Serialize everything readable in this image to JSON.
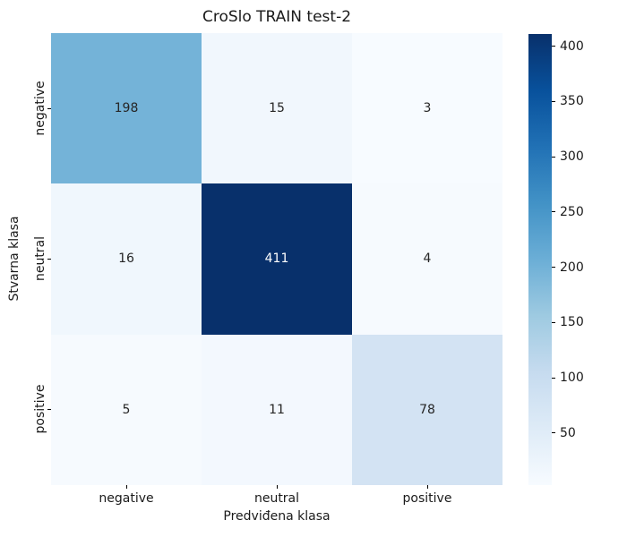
{
  "title": "CroSlo TRAIN test-2",
  "chart_data": {
    "type": "heatmap",
    "title": "CroSlo TRAIN test-2",
    "xlabel": "Predviđena klasa",
    "ylabel": "Stvarna klasa",
    "x_categories": [
      "negative",
      "neutral",
      "positive"
    ],
    "y_categories": [
      "negative",
      "neutral",
      "positive"
    ],
    "matrix": [
      [
        198,
        15,
        3
      ],
      [
        16,
        411,
        4
      ],
      [
        5,
        11,
        78
      ]
    ],
    "colormap": "Blues",
    "vmin": 3,
    "vmax": 411,
    "colorbar_ticks": [
      400,
      350,
      300,
      250,
      200,
      150,
      100,
      50
    ],
    "colorbar_position": "right",
    "grid": false,
    "annotations": true
  },
  "cells": [
    {
      "value": "198",
      "bg": "#74b3d8",
      "fg": "#262626"
    },
    {
      "value": "15",
      "bg": "#f1f7fd",
      "fg": "#262626"
    },
    {
      "value": "3",
      "bg": "#f7fbff",
      "fg": "#262626"
    },
    {
      "value": "16",
      "bg": "#f0f7fd",
      "fg": "#262626"
    },
    {
      "value": "411",
      "bg": "#08306b",
      "fg": "#ffffff"
    },
    {
      "value": "4",
      "bg": "#f6fafe",
      "fg": "#262626"
    },
    {
      "value": "5",
      "bg": "#f6fafe",
      "fg": "#262626"
    },
    {
      "value": "11",
      "bg": "#f3f8fe",
      "fg": "#262626"
    },
    {
      "value": "78",
      "bg": "#d3e3f3",
      "fg": "#262626"
    }
  ],
  "colors": {
    "cmap_stops": [
      "#08306b",
      "#08519c",
      "#2171b5",
      "#4292c6",
      "#6baed6",
      "#9ecae1",
      "#c6dbef",
      "#deebf7",
      "#f7fbff"
    ],
    "text": "#1a1a1a",
    "background": "#ffffff"
  }
}
